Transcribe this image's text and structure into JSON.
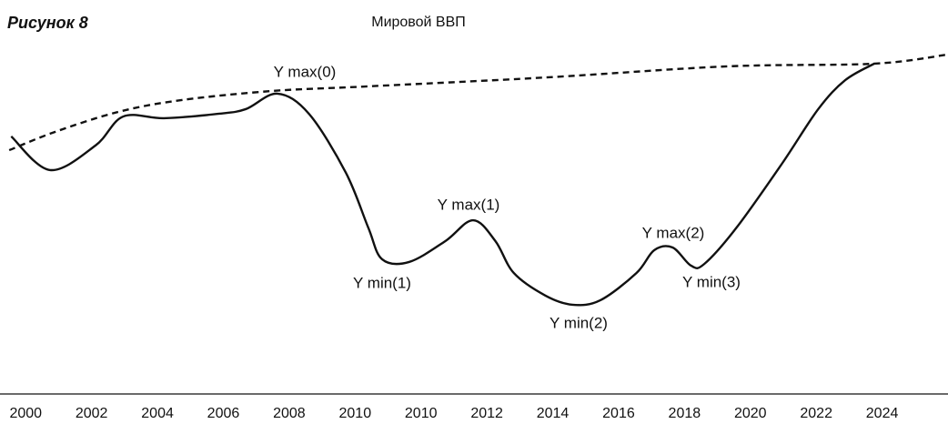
{
  "chart_data": {
    "type": "line",
    "figure_label": "Рисунок 8",
    "title": "Мировой ВВП",
    "xlim": [
      -0.39,
      14.0
    ],
    "ylim": [
      0,
      100
    ],
    "xticks": [
      {
        "value": 0,
        "label": "2000"
      },
      {
        "value": 1,
        "label": "2002"
      },
      {
        "value": 2,
        "label": "2004"
      },
      {
        "value": 3,
        "label": "2006"
      },
      {
        "value": 4,
        "label": "2008"
      },
      {
        "value": 5,
        "label": "2010"
      },
      {
        "value": 6,
        "label": "2010"
      },
      {
        "value": 7,
        "label": "2012"
      },
      {
        "value": 8,
        "label": "2014"
      },
      {
        "value": 9,
        "label": "2016"
      },
      {
        "value": 10,
        "label": "2018"
      },
      {
        "value": 11,
        "label": "2020"
      },
      {
        "value": 12,
        "label": "2022"
      },
      {
        "value": 13,
        "label": "2024"
      }
    ],
    "series": [
      {
        "color": "#111111",
        "dashed": false,
        "x": [
          -0.22,
          0.37,
          1.06,
          1.48,
          2.1,
          2.92,
          3.34,
          3.82,
          4.3,
          4.86,
          5.2,
          5.41,
          5.82,
          6.37,
          6.79,
          7.13,
          7.41,
          7.89,
          8.3,
          8.72,
          9.27,
          9.54,
          9.82,
          10.1,
          10.3,
          10.79,
          11.48,
          12.03,
          12.44,
          12.88
        ],
        "values": [
          73.0,
          63.0,
          70.3,
          78.9,
          78.4,
          79.7,
          81.1,
          85.7,
          79.7,
          62.2,
          45.9,
          36.5,
          35.7,
          41.9,
          48.1,
          41.9,
          32.4,
          25.7,
          23.0,
          24.3,
          32.4,
          39.2,
          40.0,
          34.6,
          35.1,
          45.9,
          64.9,
          81.1,
          89.7,
          94.6
        ]
      },
      {
        "color": "#111111",
        "dashed": true,
        "x": [
          -0.25,
          0.44,
          1.41,
          2.37,
          3.75,
          5.13,
          7.89,
          10.65,
          12.88,
          13.99
        ],
        "values": [
          68.9,
          74.3,
          80.3,
          83.8,
          86.5,
          87.8,
          90.5,
          93.8,
          94.6,
          97.3
        ]
      }
    ],
    "annotations": [
      "Y max(0)",
      "Y max(1)",
      "Y min(1)",
      "Y min(2)",
      "Y max(2)",
      "Y min(3)"
    ]
  }
}
